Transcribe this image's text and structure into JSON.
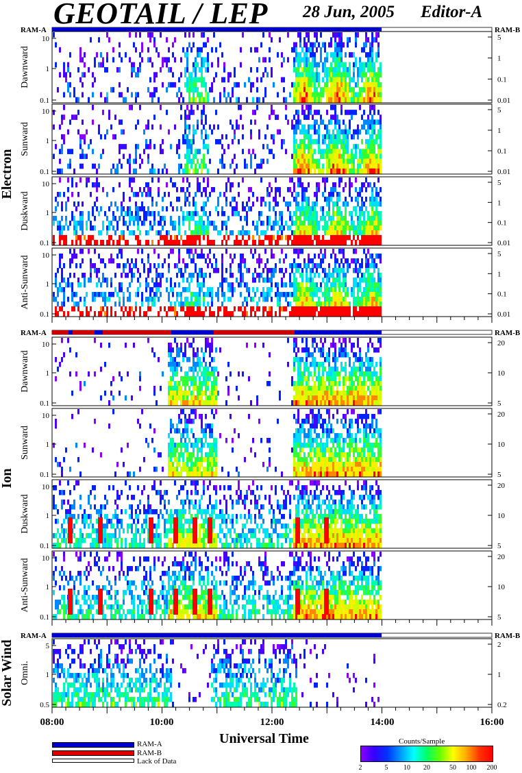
{
  "header": {
    "title": "GEOTAIL / LEP",
    "date": "28 Jun, 2005",
    "editor": "Editor-A"
  },
  "sections": [
    {
      "label": "Electron",
      "ram_left": "RAM-A",
      "ram_right": "RAM-B"
    },
    {
      "label": "Ion",
      "ram_left": "RAM-A",
      "ram_right": "RAM-B"
    },
    {
      "label": "Solar Wind",
      "ram_left": "RAM-A",
      "ram_right": "RAM-B"
    }
  ],
  "x_axis": {
    "label": "Universal Time",
    "ticks": [
      "08:00",
      "10:00",
      "12:00",
      "14:00",
      "16:00"
    ]
  },
  "legend": {
    "ram_a": "RAM-A",
    "ram_b": "RAM-B",
    "lack": "Lack of Data",
    "ram_a_color": "#0000cc",
    "ram_b_color": "#dd0000"
  },
  "colorbar": {
    "title": "Counts/Sample",
    "ticks": [
      "2",
      "5",
      "10",
      "20",
      "50",
      "100",
      "200"
    ]
  },
  "chart_data": {
    "type": "heatmap",
    "x_range": [
      "08:00",
      "16:00"
    ],
    "data_end": "14:00",
    "panels": [
      {
        "name": "Dawnward",
        "group": "Electron",
        "left_ticks": [
          "10",
          "1",
          "0.1"
        ],
        "right_ticks": [
          "5",
          "1",
          "0.1",
          "0.01"
        ]
      },
      {
        "name": "Sunward",
        "group": "Electron",
        "left_ticks": [
          "10",
          "1",
          "0.1"
        ],
        "right_ticks": [
          "5",
          "1",
          "0.1",
          "0.01"
        ]
      },
      {
        "name": "Duskward",
        "group": "Electron",
        "left_ticks": [
          "10",
          "1",
          "0.1"
        ],
        "right_ticks": [
          "5",
          "1",
          "0.1",
          "0.01"
        ]
      },
      {
        "name": "Anti-Sunward",
        "group": "Electron",
        "left_ticks": [
          "10",
          "1",
          "0.1"
        ],
        "right_ticks": [
          "5",
          "1",
          "0.1",
          "0.01"
        ]
      },
      {
        "name": "Dawnward",
        "group": "Ion",
        "left_ticks": [
          "10",
          "1",
          "0.1"
        ],
        "right_ticks": [
          "20",
          "10",
          "5"
        ]
      },
      {
        "name": "Sunward",
        "group": "Ion",
        "left_ticks": [
          "10",
          "1",
          "0.1"
        ],
        "right_ticks": [
          "20",
          "10",
          "5"
        ]
      },
      {
        "name": "Duskward",
        "group": "Ion",
        "left_ticks": [
          "10",
          "1",
          "0.1"
        ],
        "right_ticks": [
          "20",
          "10",
          "5"
        ]
      },
      {
        "name": "Anti-Sunward",
        "group": "Ion",
        "left_ticks": [
          "10",
          "1",
          "0.1"
        ],
        "right_ticks": [
          "20",
          "10",
          "5"
        ]
      },
      {
        "name": "Omni.",
        "group": "Solar Wind",
        "left_ticks": [
          "5",
          "1",
          "0.5"
        ],
        "right_ticks": [
          "2",
          "1",
          "0.2"
        ]
      }
    ]
  }
}
